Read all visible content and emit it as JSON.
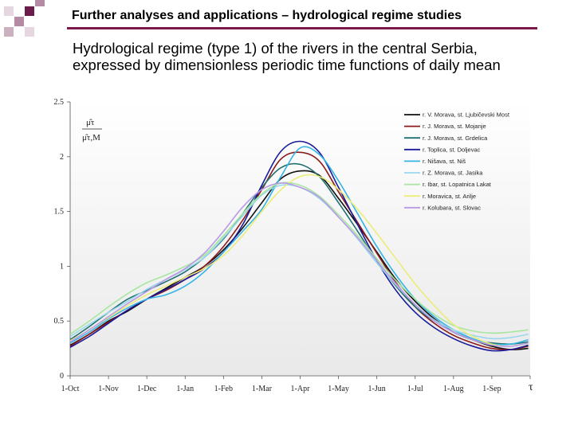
{
  "header": {
    "title": "Further analyses and applications – hydrological regime studies",
    "accent_color": "#7a1a4a",
    "square_colors": [
      "#6b1c4a",
      "#b58aa5",
      "#e6d6e0"
    ]
  },
  "subtitle": {
    "line1": "Hydrological regime (type 1) of the rivers in the central Serbia,",
    "line2": "expressed by dimensionless periodic time functions of daily mean"
  },
  "chart_data": {
    "type": "line",
    "y_label_num": "μ̂τ",
    "y_label_den": "μ̂τ,M",
    "x_label": "τ",
    "ylim": [
      0,
      2.5
    ],
    "yticks": [
      "0",
      "0.5",
      "1",
      "1.5",
      "2",
      "2.5"
    ],
    "categories": [
      "1-Oct",
      "1-Nov",
      "1-Dec",
      "1-Jan",
      "1-Feb",
      "1-Mar",
      "1-Apr",
      "1-May",
      "1-Jun",
      "1-Jul",
      "1-Aug",
      "1-Sep"
    ],
    "x": [
      0,
      0.5,
      1,
      1.5,
      2,
      2.5,
      3,
      3.5,
      4,
      4.5,
      5,
      5.5,
      6,
      6.5,
      7,
      7.5,
      8,
      8.5,
      9,
      9.5,
      10,
      10.5,
      11,
      11.5,
      11.95
    ],
    "series": [
      {
        "name": "r. V. Morava, st. Ljubičevski Most",
        "color": "#111111",
        "values": [
          0.28,
          0.38,
          0.5,
          0.59,
          0.7,
          0.8,
          0.9,
          1.0,
          1.15,
          1.35,
          1.58,
          1.8,
          1.87,
          1.83,
          1.62,
          1.38,
          1.13,
          0.88,
          0.68,
          0.52,
          0.4,
          0.33,
          0.27,
          0.24,
          0.25
        ]
      },
      {
        "name": "r. J. Morava, st. Mojanje",
        "color": "#8b1a1a",
        "values": [
          0.27,
          0.38,
          0.49,
          0.6,
          0.7,
          0.78,
          0.88,
          1.0,
          1.18,
          1.42,
          1.7,
          1.98,
          2.04,
          1.96,
          1.68,
          1.4,
          1.12,
          0.85,
          0.63,
          0.48,
          0.37,
          0.3,
          0.25,
          0.24,
          0.27
        ]
      },
      {
        "name": "r. J. Morava, st. Grdelica",
        "color": "#1f7070",
        "values": [
          0.33,
          0.45,
          0.58,
          0.7,
          0.78,
          0.86,
          0.95,
          1.08,
          1.25,
          1.48,
          1.72,
          1.9,
          1.93,
          1.82,
          1.58,
          1.32,
          1.05,
          0.82,
          0.63,
          0.5,
          0.4,
          0.33,
          0.3,
          0.29,
          0.31
        ]
      },
      {
        "name": "r. Toplica, st. Doljevac",
        "color": "#1a1a9a",
        "values": [
          0.26,
          0.36,
          0.48,
          0.6,
          0.7,
          0.79,
          0.88,
          0.98,
          1.13,
          1.38,
          1.74,
          2.05,
          2.14,
          2.04,
          1.72,
          1.38,
          1.05,
          0.78,
          0.58,
          0.44,
          0.34,
          0.27,
          0.23,
          0.24,
          0.28
        ]
      },
      {
        "name": "r. Nišava, st. Niš",
        "color": "#35b4e6",
        "values": [
          0.3,
          0.4,
          0.52,
          0.62,
          0.7,
          0.74,
          0.82,
          0.95,
          1.13,
          1.32,
          1.52,
          1.82,
          2.08,
          2.02,
          1.78,
          1.48,
          1.18,
          0.92,
          0.7,
          0.54,
          0.42,
          0.34,
          0.29,
          0.29,
          0.33
        ]
      },
      {
        "name": "r. Z. Morava, st. Jasika",
        "color": "#9ad8ee",
        "values": [
          0.36,
          0.47,
          0.58,
          0.68,
          0.79,
          0.88,
          0.97,
          1.08,
          1.26,
          1.46,
          1.65,
          1.74,
          1.72,
          1.62,
          1.45,
          1.25,
          1.03,
          0.83,
          0.65,
          0.51,
          0.42,
          0.37,
          0.34,
          0.35,
          0.38
        ]
      },
      {
        "name": "r. Ibar, st. Lopatnica Lakat",
        "color": "#a8e6a0",
        "values": [
          0.38,
          0.5,
          0.63,
          0.75,
          0.85,
          0.92,
          1.0,
          1.1,
          1.28,
          1.48,
          1.66,
          1.76,
          1.74,
          1.64,
          1.47,
          1.28,
          1.07,
          0.87,
          0.7,
          0.56,
          0.46,
          0.41,
          0.39,
          0.4,
          0.42
        ]
      },
      {
        "name": "r. Moravica, st. Arilje",
        "color": "#ecec7a",
        "values": [
          0.32,
          0.42,
          0.53,
          0.64,
          0.74,
          0.82,
          0.9,
          0.98,
          1.1,
          1.28,
          1.5,
          1.7,
          1.82,
          1.82,
          1.7,
          1.52,
          1.3,
          1.07,
          0.84,
          0.64,
          0.47,
          0.36,
          0.29,
          0.27,
          0.3
        ]
      },
      {
        "name": "r. Kolubara, st. Slovac",
        "color": "#b89ae6",
        "values": [
          0.31,
          0.42,
          0.54,
          0.66,
          0.77,
          0.88,
          0.98,
          1.12,
          1.32,
          1.54,
          1.7,
          1.76,
          1.72,
          1.63,
          1.45,
          1.26,
          1.05,
          0.84,
          0.65,
          0.5,
          0.4,
          0.33,
          0.28,
          0.27,
          0.3
        ]
      }
    ]
  }
}
